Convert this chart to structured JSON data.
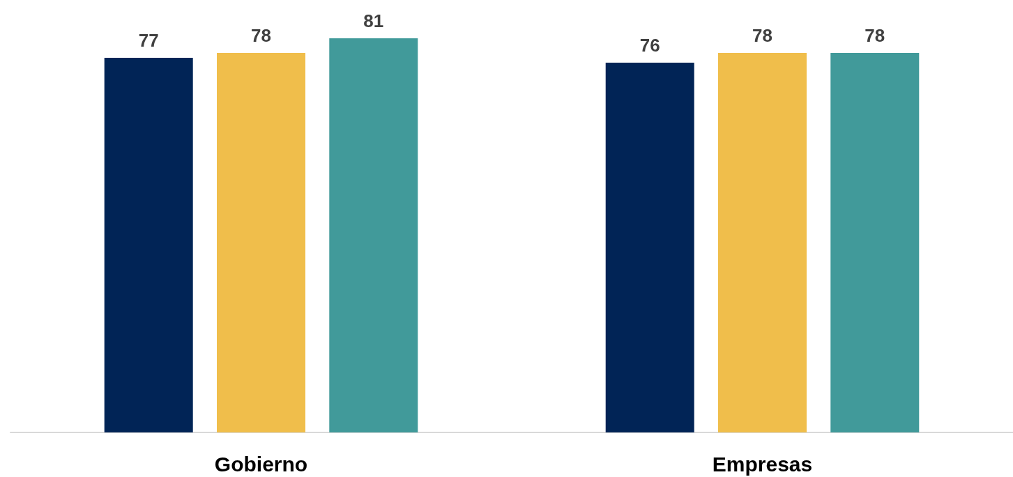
{
  "chart_data": {
    "type": "bar",
    "categories": [
      "Gobierno",
      "Empresas"
    ],
    "series": [
      {
        "color": "#012456",
        "values": [
          77,
          76
        ]
      },
      {
        "color": "#f0be4b",
        "values": [
          78,
          78
        ]
      },
      {
        "color": "#419a9a",
        "values": [
          81,
          78
        ]
      }
    ],
    "data_labels": true
  }
}
